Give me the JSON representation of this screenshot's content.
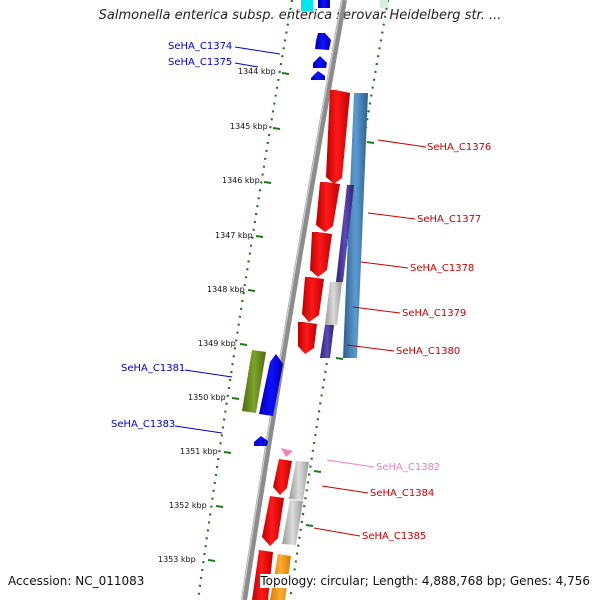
{
  "title": "Salmonella enterica subsp. enterica serovar Heidelberg str. ...",
  "footer": {
    "accession": "Accession: NC_011083",
    "topology": "Topology: circular; Length: 4,888,768 bp; Genes: 4,756"
  },
  "ticks": [
    "1344 kbp",
    "1345 kbp",
    "1346 kbp",
    "1347 kbp",
    "1348 kbp",
    "1349 kbp",
    "1350 kbp",
    "1351 kbp",
    "1352 kbp",
    "1353 kbp"
  ],
  "gene_labels": [
    {
      "id": "SeHA_C1374",
      "strand": "minus",
      "color": "#0000cc"
    },
    {
      "id": "SeHA_C1375",
      "strand": "minus",
      "color": "#0000cc"
    },
    {
      "id": "SeHA_C1376",
      "strand": "plus",
      "color": "#cc0000"
    },
    {
      "id": "SeHA_C1377",
      "strand": "plus",
      "color": "#cc0000"
    },
    {
      "id": "SeHA_C1378",
      "strand": "plus",
      "color": "#cc0000"
    },
    {
      "id": "SeHA_C1379",
      "strand": "plus",
      "color": "#cc0000"
    },
    {
      "id": "SeHA_C1380",
      "strand": "plus",
      "color": "#cc0000"
    },
    {
      "id": "SeHA_C1381",
      "strand": "minus",
      "color": "#0000cc"
    },
    {
      "id": "SeHA_C1383",
      "strand": "minus",
      "color": "#0000cc"
    },
    {
      "id": "SeHA_C1382",
      "strand": "plus",
      "color": "#f080b8"
    },
    {
      "id": "SeHA_C1384",
      "strand": "plus",
      "color": "#cc0000"
    },
    {
      "id": "SeHA_C1385",
      "strand": "plus",
      "color": "#cc0000"
    }
  ],
  "colors": {
    "backbone": "#8c8c8c",
    "tick_ring": "#1a7a1a",
    "plus_strand": "#ff0000",
    "minus_strand": "#0000ff",
    "steelblue_feature": "#4682b4",
    "purple_feature": "#4b3a9a",
    "grey_feature": "#c8c8c8",
    "olive_feature": "#6b8e23",
    "orange_feature": "#ff9900",
    "pink_feature": "#f080b8",
    "cyan_feature": "#00e5ee"
  }
}
